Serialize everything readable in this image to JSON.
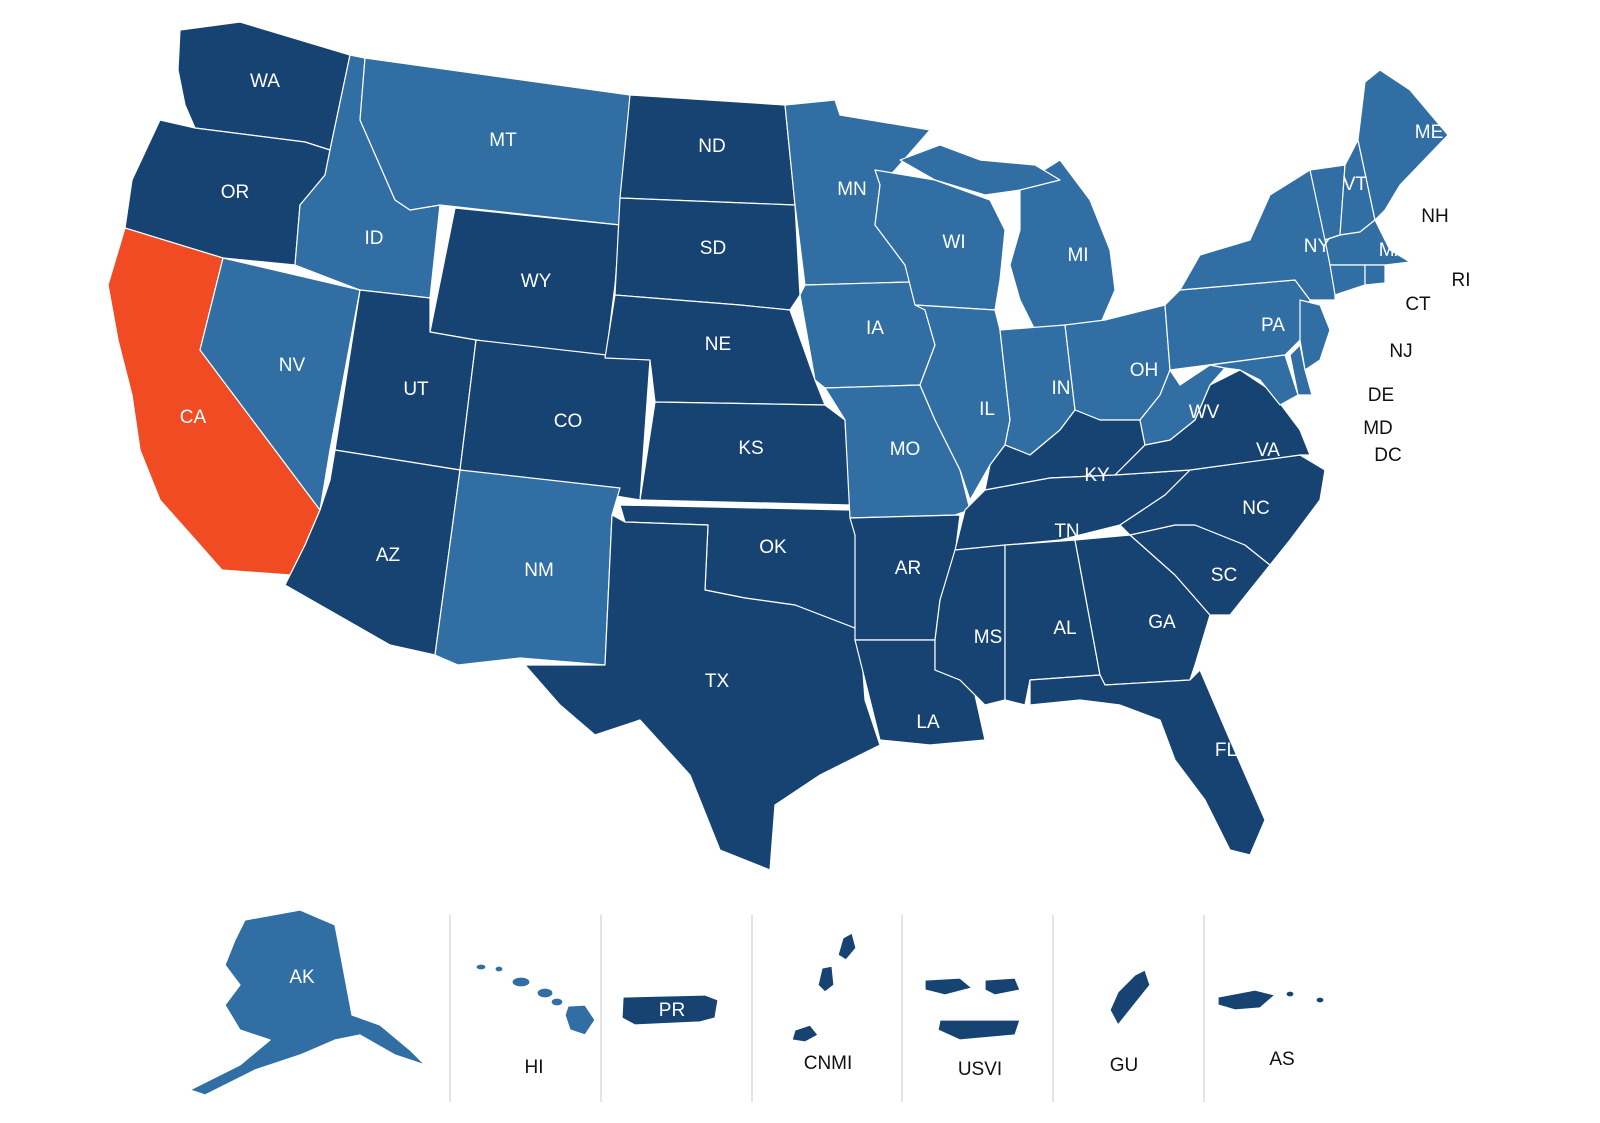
{
  "colors": {
    "dark": "#174373",
    "light": "#306ea3",
    "highlight": "#f04b22",
    "border": "#ffffff"
  },
  "states": {
    "WA": "WA",
    "OR": "OR",
    "CA": "CA",
    "ID": "ID",
    "NV": "NV",
    "MT": "MT",
    "WY": "WY",
    "UT": "UT",
    "AZ": "AZ",
    "CO": "CO",
    "NM": "NM",
    "ND": "ND",
    "SD": "SD",
    "NE": "NE",
    "KS": "KS",
    "OK": "OK",
    "TX": "TX",
    "MN": "MN",
    "IA": "IA",
    "MO": "MO",
    "AR": "AR",
    "LA": "LA",
    "WI": "WI",
    "IL": "IL",
    "MS": "MS",
    "MI": "MI",
    "IN": "IN",
    "KY": "KY",
    "TN": "TN",
    "AL": "AL",
    "OH": "OH",
    "GA": "GA",
    "FL": "FL",
    "SC": "SC",
    "NC": "NC",
    "VA": "VA",
    "WV": "WV",
    "PA": "PA",
    "NY": "NY",
    "VT": "VT",
    "NH": "NH",
    "ME": "ME",
    "MA": "MA",
    "RI": "RI",
    "CT": "CT",
    "NJ": "NJ",
    "DE": "DE",
    "MD": "MD",
    "DC": "DC"
  },
  "territories": {
    "AK": "AK",
    "HI": "HI",
    "PR": "PR",
    "CNMI": "CNMI",
    "USVI": "USVI",
    "GU": "GU",
    "AS": "AS"
  },
  "highlighted": [
    "CA"
  ],
  "light_shaded": [
    "ID",
    "MT",
    "NV",
    "NM",
    "MN",
    "IA",
    "MO",
    "WI",
    "IL",
    "MI",
    "IN",
    "OH",
    "WV",
    "PA",
    "NY",
    "VT",
    "NH",
    "ME",
    "MA",
    "RI",
    "CT",
    "NJ",
    "DE",
    "MD",
    "AK",
    "HI"
  ]
}
